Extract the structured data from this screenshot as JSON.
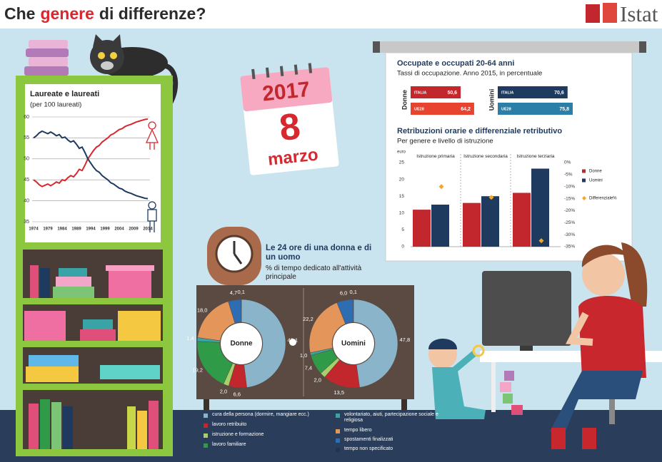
{
  "header": {
    "title_parts": [
      "Che",
      "genere",
      "di differenze?"
    ],
    "logo": "Istat"
  },
  "calendar": {
    "year": "2017",
    "day": "8",
    "month": "marzo"
  },
  "chart_data": [
    {
      "type": "line",
      "title": "Laureate e laureati",
      "subtitle": "(per 100 laureati)",
      "x": [
        1974,
        1975,
        1976,
        1977,
        1978,
        1979,
        1980,
        1981,
        1982,
        1983,
        1984,
        1985,
        1986,
        1987,
        1988,
        1989,
        1990,
        1991,
        1992,
        1993,
        1994,
        1995,
        1996,
        1997,
        1998,
        1999,
        2000,
        2001,
        2002,
        2003,
        2004,
        2005,
        2006,
        2007,
        2008,
        2009,
        2010,
        2011,
        2012,
        2013,
        2014
      ],
      "series": [
        {
          "color": "#d7282f",
          "values": [
            45.0,
            44.5,
            43.8,
            43.4,
            43.7,
            44.0,
            43.6,
            44.0,
            44.5,
            44.2,
            45.0,
            44.8,
            45.5,
            46.0,
            45.7,
            46.5,
            47.5,
            47.2,
            48.5,
            50.0,
            51.0,
            52.0,
            52.8,
            53.2,
            54.0,
            54.5,
            55.0,
            55.7,
            56.0,
            56.5,
            57.0,
            57.2,
            57.7,
            58.0,
            58.2,
            58.5,
            58.8,
            59.0,
            59.2,
            59.4,
            59.5
          ]
        },
        {
          "color": "#1f3a5f",
          "values": [
            55.0,
            55.5,
            56.2,
            56.6,
            56.3,
            56.0,
            56.4,
            56.0,
            55.5,
            55.8,
            55.0,
            55.2,
            54.5,
            54.0,
            54.3,
            53.5,
            52.5,
            52.8,
            51.5,
            50.0,
            49.0,
            48.0,
            47.2,
            46.8,
            46.0,
            45.5,
            45.0,
            44.3,
            44.0,
            43.5,
            43.0,
            42.8,
            42.3,
            42.0,
            41.8,
            41.5,
            41.2,
            41.0,
            40.8,
            40.6,
            40.5
          ]
        }
      ],
      "xlim": [
        1973,
        2015
      ],
      "xticks": [
        1974,
        1979,
        1984,
        1989,
        1994,
        1999,
        2004,
        2009,
        2014
      ],
      "ylim": [
        35,
        60
      ],
      "yticks": [
        35,
        40,
        45,
        50,
        55,
        60
      ],
      "grid": true
    },
    {
      "type": "hbar",
      "title": "Occupate e occupati 20-64 anni",
      "subtitle": "Tassi di occupazione. Anno 2015, in percentuale",
      "panels": [
        {
          "label": "Donne",
          "categories": [
            "ITALIA",
            "UE28"
          ],
          "values": [
            50.6,
            64.2
          ],
          "value_labels": [
            "50,6",
            "64,2"
          ],
          "colors": [
            "#c1272d",
            "#e8432e"
          ]
        },
        {
          "label": "Uomini",
          "categories": [
            "ITALIA",
            "UE28"
          ],
          "values": [
            70.6,
            75.8
          ],
          "value_labels": [
            "70,6",
            "75,8"
          ],
          "colors": [
            "#1f3a5f",
            "#2a7fa8"
          ]
        }
      ]
    },
    {
      "type": "grouped_bar",
      "title": "Retribuzioni orarie e differenziale retributivo",
      "subtitle": "Per genere  e livello di istruzione",
      "y_label": "euro",
      "categories": [
        "Istruzione primaria",
        "Istruzione secondaria",
        "Istruzione terziaria"
      ],
      "series": [
        {
          "name": "Donne",
          "color": "#c1272d",
          "values": [
            11,
            13,
            16
          ]
        },
        {
          "name": "Uomini",
          "color": "#1f3a5f",
          "values": [
            12.5,
            15,
            23.2
          ]
        },
        {
          "name": "Differenziale%",
          "color": "#f5a623",
          "axis": "y2",
          "values": [
            -10,
            -14.5,
            -32.5
          ]
        }
      ],
      "ylim": [
        0,
        25
      ],
      "yticks": [
        0,
        5,
        10,
        15,
        20,
        25
      ],
      "y2lim": [
        -35,
        0
      ],
      "y2ticks": [
        {
          "value": 0,
          "label": "0%"
        },
        {
          "value": -5,
          "label": "-5%"
        },
        {
          "value": -10,
          "label": "-10%"
        },
        {
          "value": -15,
          "label": "-15%"
        },
        {
          "value": -20,
          "label": "-20%"
        },
        {
          "value": -25,
          "label": "-25%"
        },
        {
          "value": -30,
          "label": "-30%"
        },
        {
          "value": -35,
          "label": "-35%"
        }
      ]
    },
    {
      "type": "donut",
      "title": "Le 24 ore di una donna e di un uomo",
      "subtitle": "% di tempo dedicato all'attività principale",
      "categories": [
        "cura della persona (dormire, mangiare ecc.)",
        "lavoro retribuito",
        "istruzione e formazione",
        "lavoro familiare",
        "volontariato, aiuti, partecipazione sociale e religiosa",
        "tempo libero",
        "spostamenti finalizzati",
        "tempo non specificato"
      ],
      "colors": [
        "#8ab4c9",
        "#c1272d",
        "#a9cf6a",
        "#2f9a48",
        "#3aa3a5",
        "#e3955a",
        "#2f6db3",
        "#1d3557"
      ],
      "panels": [
        {
          "label": "Donne",
          "values": [
            48.1,
            6.6,
            2.0,
            19.2,
            1.4,
            18.0,
            4.7,
            0.1
          ],
          "value_labels": [
            "48,1",
            "6,6",
            "2,0",
            "19,2",
            "1,4",
            "18,0",
            "4,7",
            "0,1"
          ]
        },
        {
          "label": "Uomini",
          "values": [
            47.8,
            13.5,
            2.0,
            7.4,
            1.0,
            22.2,
            6.0,
            0.1
          ],
          "value_labels": [
            "47,8",
            "13,5",
            "2,0",
            "7,4",
            "1,0",
            "22,2",
            "6,0",
            "0,1"
          ]
        }
      ]
    }
  ]
}
